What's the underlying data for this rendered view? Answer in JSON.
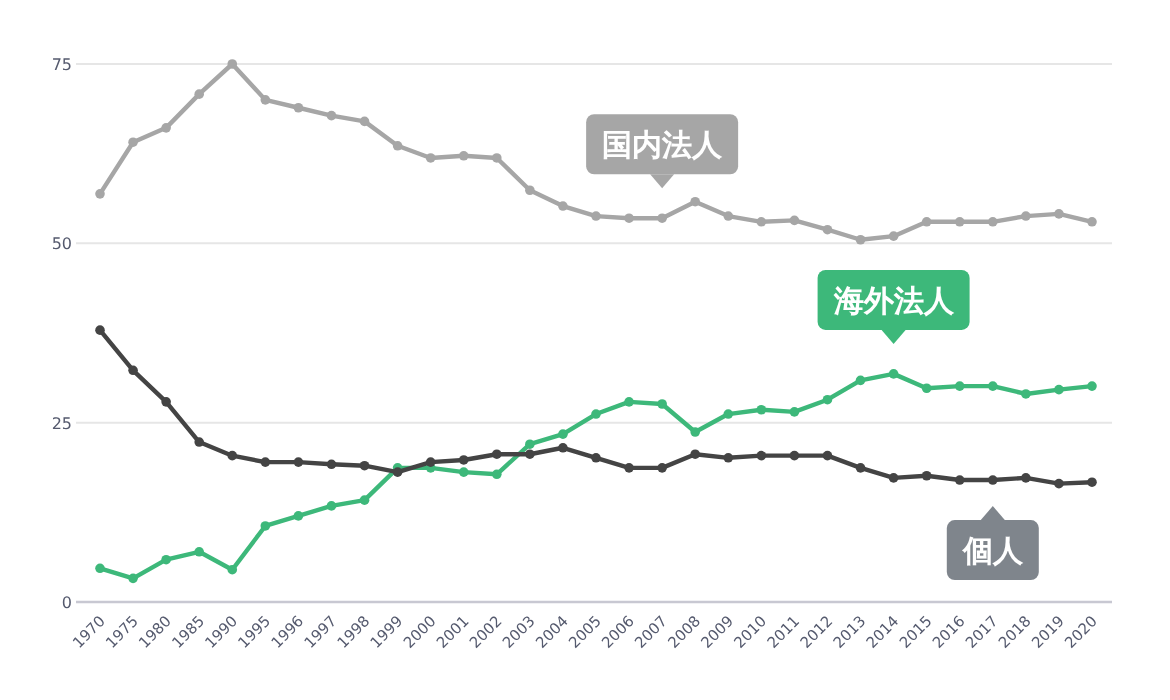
{
  "chart_data": {
    "type": "line",
    "categories": [
      "1970",
      "1975",
      "1980",
      "1985",
      "1990",
      "1995",
      "1996",
      "1997",
      "1998",
      "1999",
      "2000",
      "2001",
      "2002",
      "2003",
      "2004",
      "2005",
      "2006",
      "2007",
      "2008",
      "2009",
      "2010",
      "2011",
      "2012",
      "2013",
      "2014",
      "2015",
      "2016",
      "2017",
      "2018",
      "2019",
      "2020"
    ],
    "series": [
      {
        "name": "国内法人",
        "color": "#a6a6a6",
        "values": [
          56.9,
          64.1,
          66.1,
          70.8,
          75,
          70,
          68.9,
          67.8,
          67,
          63.6,
          61.9,
          62.2,
          61.9,
          57.4,
          55.2,
          53.8,
          53.5,
          53.5,
          55.8,
          53.8,
          53,
          53.2,
          51.9,
          50.5,
          51,
          53,
          53,
          53,
          53.8,
          54.1,
          53
        ]
      },
      {
        "name": "海外法人",
        "color": "#3db87a",
        "values": [
          4.7,
          3.3,
          5.9,
          7,
          4.5,
          10.6,
          12,
          13.4,
          14.2,
          18.7,
          18.7,
          18.1,
          17.8,
          22,
          23.4,
          26.2,
          27.9,
          27.6,
          23.7,
          26.2,
          26.8,
          26.5,
          28.2,
          30.9,
          31.8,
          29.8,
          30.1,
          30.1,
          29,
          29.6,
          30.1
        ]
      },
      {
        "name": "個人",
        "color": "#444444",
        "values": [
          37.9,
          32.3,
          27.9,
          22.3,
          20.4,
          19.5,
          19.5,
          19.2,
          19,
          18.1,
          19.5,
          19.8,
          20.6,
          20.6,
          21.5,
          20.1,
          18.7,
          18.7,
          20.6,
          20.1,
          20.4,
          20.4,
          20.4,
          18.7,
          17.3,
          17.6,
          17,
          17,
          17.3,
          16.5,
          16.7
        ]
      }
    ],
    "ylim": [
      0,
      75
    ],
    "yticks": [
      0,
      25,
      50,
      75
    ],
    "grid": "y",
    "marker": "circle",
    "line_style": "solid"
  }
}
